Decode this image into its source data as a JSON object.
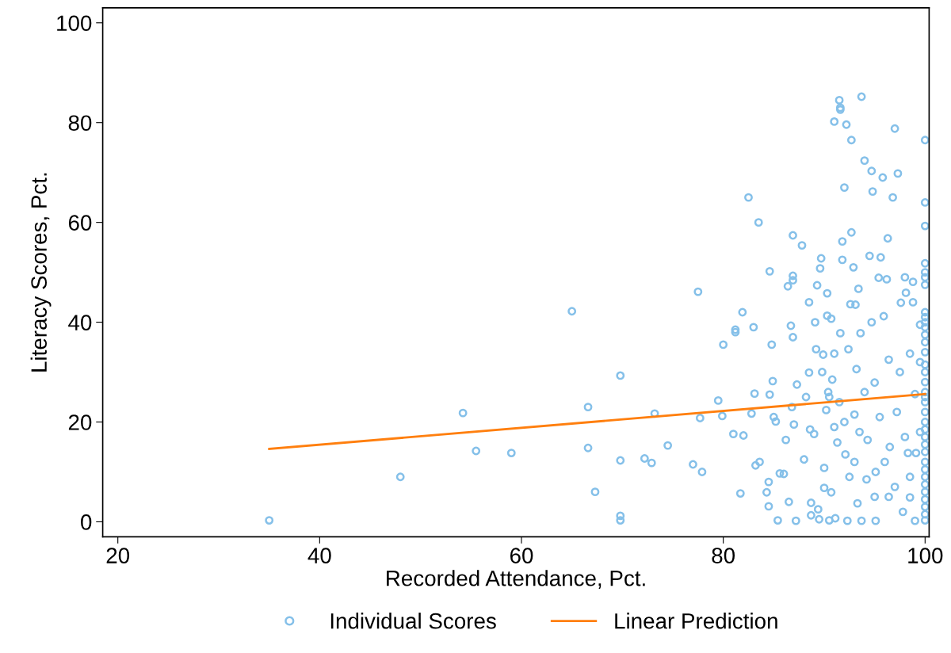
{
  "chart_data": {
    "type": "scatter",
    "xlabel": "Recorded Attendance, Pct.",
    "ylabel": "Literacy Scores, Pct.",
    "xlim": [
      18.5,
      100.4
    ],
    "ylim": [
      -3,
      103
    ],
    "xticks": [
      20,
      40,
      60,
      80,
      100
    ],
    "yticks": [
      0,
      20,
      40,
      60,
      80,
      100
    ],
    "grid": false,
    "legend": "bottom",
    "series": [
      {
        "name": "Individual Scores",
        "marker": "circle",
        "color": "#85c0e9",
        "x": [
          35,
          48,
          54.2,
          55.5,
          59,
          65,
          66.6,
          66.6,
          67.3,
          69.8,
          69.8,
          69.8,
          69.8,
          72.2,
          72.9,
          73.2,
          74.5,
          77,
          77.5,
          77.7,
          77.9,
          79.5,
          80,
          79.9,
          81,
          81.2,
          81.2,
          81.7,
          81.9,
          82,
          82.5,
          82.8,
          83,
          83.1,
          83.2,
          83.5,
          83.6,
          84.3,
          84.5,
          84.5,
          84.6,
          84.6,
          84.8,
          84.9,
          85,
          85.2,
          85.4,
          85.6,
          86,
          86.2,
          86.4,
          86.5,
          86.7,
          86.8,
          86.9,
          86.9,
          86.9,
          86.9,
          87,
          87.2,
          87.3,
          87.8,
          88.2,
          88,
          88.5,
          88.5,
          88.6,
          88.7,
          88.7,
          89,
          89.2,
          89.3,
          89.1,
          89.4,
          89.5,
          89.7,
          89.8,
          89.6,
          89.9,
          90,
          90,
          90.3,
          90.3,
          90.2,
          90.4,
          90.5,
          90.7,
          90.7,
          90.8,
          91,
          91,
          91.3,
          91.1,
          91.5,
          91.6,
          91.6,
          91.6,
          91.8,
          91.8,
          92,
          92.2,
          92.1,
          92.3,
          92.4,
          92.7,
          92.7,
          92.6,
          92.9,
          93.1,
          93.2,
          93,
          93.3,
          93.4,
          93.6,
          93.7,
          93.7,
          94,
          94.2,
          94.3,
          94.5,
          94.7,
          94.8,
          94.7,
          95,
          95.1,
          95.1,
          95.4,
          95.6,
          95.8,
          95.9,
          96.2,
          96.3,
          96.4,
          96.4,
          96.8,
          97,
          97.2,
          97.3,
          97.6,
          97.8,
          98,
          98.1,
          98.3,
          98.5,
          98.5,
          98.8,
          98.8,
          99,
          99.1,
          99,
          99.5,
          90.5,
          91.5,
          92,
          93.5,
          95.5,
          96,
          97.5,
          98,
          94,
          92.5,
          96.5,
          97,
          95,
          93,
          91,
          98.5,
          99.5,
          99.5,
          100,
          100,
          100,
          100,
          100,
          100,
          100,
          100,
          100,
          100,
          100,
          100,
          100,
          100,
          100,
          100,
          100,
          100,
          100,
          100,
          100,
          100,
          100,
          100,
          100,
          100,
          100,
          100,
          100,
          100,
          100,
          100,
          100,
          100,
          100
        ],
        "values": [
          0.3,
          9,
          21.8,
          14.2,
          13.8,
          42.2,
          23,
          14.8,
          6,
          29.3,
          12.3,
          1.2,
          0.3,
          12.7,
          11.8,
          21.7,
          15.3,
          11.5,
          46.1,
          20.8,
          10,
          24.3,
          35.5,
          21.2,
          17.6,
          38.5,
          38,
          5.7,
          42,
          17.3,
          65,
          21.7,
          39,
          25.7,
          11.3,
          60,
          12,
          5.9,
          8,
          3.1,
          25.5,
          50.2,
          35.5,
          28.2,
          21,
          20.1,
          0.3,
          9.7,
          9.6,
          16.4,
          47.2,
          4,
          39.3,
          23,
          49.3,
          48.4,
          57.4,
          37,
          19.5,
          0.2,
          27.5,
          55.4,
          25,
          12.5,
          29.9,
          44,
          18.5,
          3.8,
          1.3,
          17.6,
          34.6,
          47.4,
          40,
          2.5,
          0.5,
          52.8,
          30,
          50.8,
          33.5,
          10.8,
          6.8,
          45.8,
          41.3,
          22.4,
          26,
          0.3,
          40.7,
          5.9,
          28.5,
          80.2,
          33.7,
          15.9,
          0.7,
          84.5,
          83,
          82.6,
          37.8,
          56.2,
          52.5,
          67,
          79.6,
          13.5,
          0.2,
          34.6,
          76.5,
          58,
          43.6,
          51,
          43.5,
          30.6,
          21.5,
          3.7,
          46.7,
          37.8,
          85.2,
          0.2,
          72.4,
          8.5,
          16.4,
          53.3,
          70.3,
          66.2,
          40,
          27.9,
          10,
          0.2,
          48.9,
          53,
          69,
          41.2,
          48.6,
          56.8,
          32.5,
          5,
          65,
          78.8,
          22,
          69.8,
          43.9,
          2,
          49,
          45.9,
          13.8,
          4.9,
          33.7,
          48.1,
          44,
          25.6,
          13.8,
          0.2,
          18,
          25,
          24,
          20,
          18,
          21,
          12,
          30,
          17,
          26,
          9,
          15,
          7,
          5,
          12,
          19,
          9,
          32,
          39.5,
          76.5,
          64,
          59.3,
          51.8,
          50,
          49,
          47.5,
          42,
          41,
          40,
          39,
          37.5,
          36,
          34,
          31.5,
          30,
          28,
          26,
          25,
          24,
          22,
          20,
          18.5,
          17,
          15.5,
          14,
          12,
          10.5,
          9,
          7.5,
          6,
          4.5,
          3,
          1.5,
          0.3
        ]
      },
      {
        "name": "Linear Prediction",
        "type": "line",
        "marker": "none",
        "line_style": "solid",
        "color": "#ff7f0e",
        "x": [
          35,
          100
        ],
        "values": [
          14.6,
          25.6
        ]
      }
    ]
  }
}
